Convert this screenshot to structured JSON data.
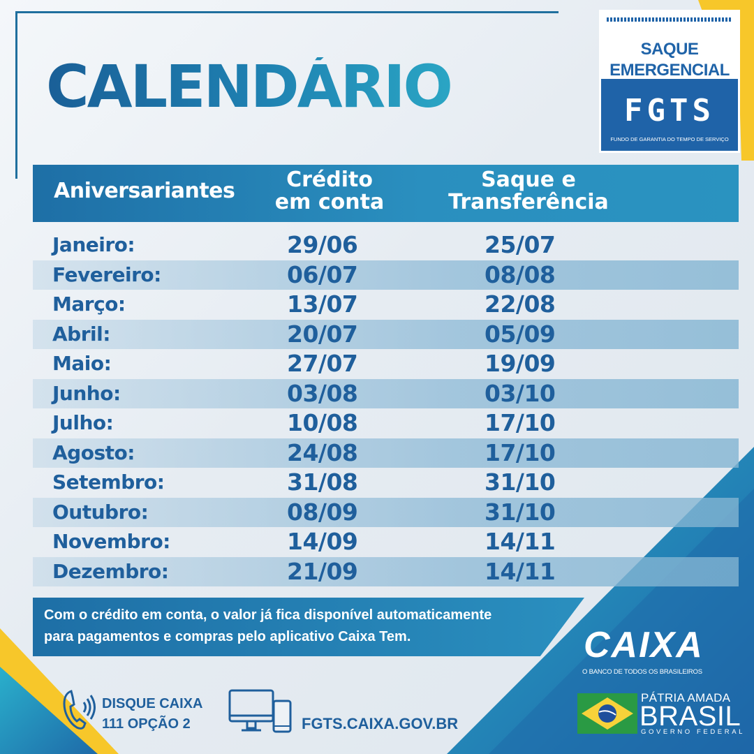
{
  "title": "CALENDÁRIO",
  "badge": {
    "line1": "SAQUE",
    "line2": "EMERGENCIAL",
    "logo": "FGTS",
    "subtitle": "FUNDO DE GARANTIA DO TEMPO DE SERVIÇO"
  },
  "table": {
    "headers": {
      "month": "Aniversariantes",
      "credit_line1": "Crédito",
      "credit_line2": "em conta",
      "saque_line1": "Saque e",
      "saque_line2": "Transferência"
    },
    "rows": [
      {
        "month": "Janeiro:",
        "credit": "29/06",
        "saque": "25/07"
      },
      {
        "month": "Fevereiro:",
        "credit": "06/07",
        "saque": "08/08"
      },
      {
        "month": "Março:",
        "credit": "13/07",
        "saque": "22/08"
      },
      {
        "month": "Abril:",
        "credit": "20/07",
        "saque": "05/09"
      },
      {
        "month": "Maio:",
        "credit": "27/07",
        "saque": "19/09"
      },
      {
        "month": "Junho:",
        "credit": "03/08",
        "saque": "03/10"
      },
      {
        "month": "Julho:",
        "credit": "10/08",
        "saque": "17/10"
      },
      {
        "month": "Agosto:",
        "credit": "24/08",
        "saque": "17/10"
      },
      {
        "month": "Setembro:",
        "credit": "31/08",
        "saque": "31/10"
      },
      {
        "month": "Outubro:",
        "credit": "08/09",
        "saque": "31/10"
      },
      {
        "month": "Novembro:",
        "credit": "14/09",
        "saque": "14/11"
      },
      {
        "month": "Dezembro:",
        "credit": "21/09",
        "saque": "14/11"
      }
    ]
  },
  "note": {
    "line1": "Com o crédito em conta, o valor já fica disponível automaticamente",
    "line2": "para pagamentos e compras pelo aplicativo Caixa Tem."
  },
  "footer": {
    "phone_line1": "DISQUE CAIXA",
    "phone_line2": "111 OPÇÃO 2",
    "phone_icon": "phone-icon",
    "device_icon": "computer-phone-icon",
    "website": "FGTS.CAIXA.GOV.BR",
    "caixa_logo": "CAIXA",
    "caixa_slogan": "O BANCO DE TODOS OS BRASILEIROS",
    "gov_line1": "PÁTRIA AMADA",
    "gov_line2": "BRASIL",
    "gov_line3": "GOVERNO FEDERAL"
  },
  "colors": {
    "primary_blue": "#1f5f9c",
    "header_blue": "#1e6fa6",
    "teal": "#2aa5c4",
    "yellow": "#f7c72a",
    "flag_green": "#2a9a44"
  }
}
